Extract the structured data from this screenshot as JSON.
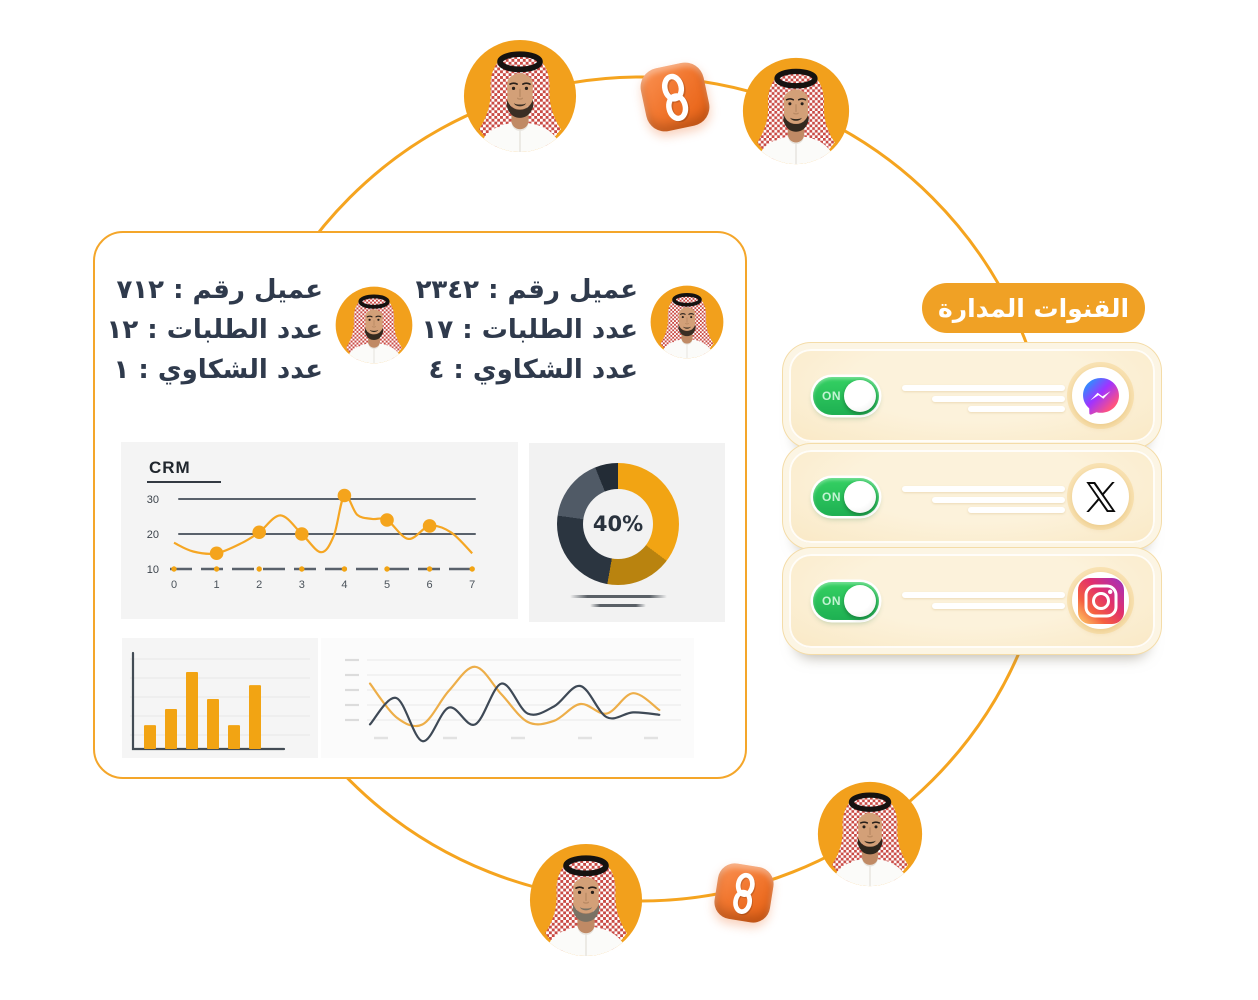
{
  "managed_channels": {
    "title": "القنوات المدارة",
    "channels": [
      {
        "name": "messenger",
        "icon": "messenger-icon",
        "toggle_label": "ON",
        "toggle_state": "on",
        "skeleton_lines": 3
      },
      {
        "name": "x",
        "icon": "x-icon",
        "toggle_label": "ON",
        "toggle_state": "on",
        "skeleton_lines": 3
      },
      {
        "name": "instagram",
        "icon": "instagram-icon",
        "toggle_label": "ON",
        "toggle_state": "on",
        "skeleton_lines": 2
      }
    ]
  },
  "customers": [
    {
      "customer_no_label": "عميل رقم : ٢٣٤٢",
      "orders_label": "عدد الطلبات : ١٧",
      "complaints_label": "عدد الشكاوي : ٤"
    },
    {
      "customer_no_label": "عميل رقم : ٧١٢",
      "orders_label": "عدد الطلبات : ١٢",
      "complaints_label": "عدد الشكاوي : ١"
    }
  ],
  "colors": {
    "theme_orange": "#F2A41A",
    "ring_stroke": "#F5A41F",
    "pill_background": "#F0A125",
    "toggle_green": "#27C156",
    "channel_card_cream": "#F8E3B8",
    "text_dark_navy": "#2F3A4C",
    "link_icon_orange": "#F1762E"
  },
  "chart_data": [
    {
      "id": "crm",
      "type": "line",
      "title": "CRM",
      "x_ticks": [
        "0",
        "1",
        "2",
        "3",
        "4",
        "5",
        "6",
        "7"
      ],
      "y_ticks": [
        "10",
        "20",
        "30"
      ],
      "xlim": [
        0,
        7
      ],
      "ylim": [
        10,
        33
      ],
      "grid": true,
      "line_color": "#F5A623",
      "grid_color": "#59616B",
      "marker_points": {
        "x": [
          1,
          2,
          3,
          4,
          5,
          6
        ],
        "y": [
          14.5,
          20.5,
          20,
          31,
          24,
          22.3
        ]
      },
      "curve_samples": {
        "x": [
          0,
          0.45,
          1,
          1.6,
          2,
          2.5,
          3,
          3.45,
          3.75,
          4,
          4.3,
          4.65,
          5,
          5.5,
          6,
          6.5,
          7
        ],
        "y": [
          17.5,
          15,
          14.5,
          17.5,
          20.5,
          25.3,
          20,
          14.8,
          19.5,
          31,
          25.5,
          24.3,
          24,
          18.6,
          22.3,
          20.5,
          14.5
        ]
      }
    },
    {
      "id": "donut",
      "type": "pie",
      "center_label": "40%",
      "slices": [
        {
          "name": "amber",
          "pct": 35.3,
          "color": "#F2A413"
        },
        {
          "name": "dark-amber",
          "pct": 17.5,
          "color": "#B9830F"
        },
        {
          "name": "charcoal",
          "pct": 24.4,
          "color": "#2B3540"
        },
        {
          "name": "slate",
          "pct": 16.7,
          "color": "#505A66"
        },
        {
          "name": "deep-charcoal",
          "pct": 6.1,
          "color": "#232C36"
        }
      ]
    },
    {
      "id": "bars",
      "type": "bar",
      "bar_color": "#F2A413",
      "relative_heights": [
        31,
        52,
        100,
        65,
        31,
        83
      ]
    },
    {
      "id": "waves",
      "type": "line",
      "series": [
        {
          "name": "amber-wave",
          "color": "#EDAE49",
          "y_pct": [
            38,
            66,
            72,
            44,
            24,
            47,
            70,
            69,
            55,
            63,
            46,
            60
          ]
        },
        {
          "name": "charcoal-wave",
          "color": "#3E4956",
          "y_pct": [
            72,
            50,
            86,
            58,
            72,
            38,
            63,
            57,
            40,
            66,
            62,
            64
          ]
        }
      ]
    }
  ]
}
